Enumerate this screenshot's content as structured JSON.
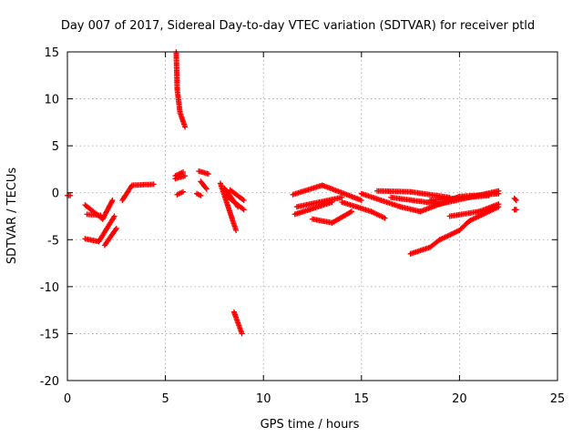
{
  "chart_data": {
    "type": "scatter",
    "title": "Day 007 of 2017, Sidereal Day-to-day VTEC variation (SDTVAR) for receiver ptld",
    "xlabel": "GPS time / hours",
    "ylabel": "SDTVAR / TECUs",
    "xlim": [
      0,
      25
    ],
    "ylim": [
      -20,
      15
    ],
    "xticks": [
      0,
      5,
      10,
      15,
      20,
      25
    ],
    "yticks": [
      -20,
      -15,
      -10,
      -5,
      0,
      5,
      10,
      15
    ],
    "grid": true,
    "marker": "+",
    "color": "#ff0000",
    "series": [
      {
        "segments": [
          {
            "x0": 0.0,
            "y0": -0.3,
            "x1": 0.15,
            "y1": -0.3
          },
          {
            "x0": 0.9,
            "y0": -1.3,
            "x1": 1.8,
            "y1": -2.8
          },
          {
            "x0": 1.0,
            "y0": -2.3,
            "x1": 1.7,
            "y1": -2.4
          },
          {
            "x0": 1.8,
            "y0": -2.8,
            "x1": 2.3,
            "y1": -0.8
          },
          {
            "x0": 0.9,
            "y0": -4.9,
            "x1": 1.6,
            "y1": -5.2
          },
          {
            "x0": 1.6,
            "y0": -5.2,
            "x1": 2.4,
            "y1": -2.5
          },
          {
            "x0": 1.9,
            "y0": -5.6,
            "x1": 2.5,
            "y1": -3.8
          },
          {
            "x0": 2.8,
            "y0": -0.8,
            "x1": 3.3,
            "y1": 0.8
          },
          {
            "x0": 3.3,
            "y0": 0.8,
            "x1": 4.4,
            "y1": 0.9
          },
          {
            "x0": 5.55,
            "y0": 15.0,
            "x1": 5.6,
            "y1": 11.0
          },
          {
            "x0": 5.6,
            "y0": 11.0,
            "x1": 5.75,
            "y1": 8.5
          },
          {
            "x0": 5.75,
            "y0": 8.5,
            "x1": 6.0,
            "y1": 7.0
          },
          {
            "x0": 5.5,
            "y0": 1.8,
            "x1": 5.9,
            "y1": 2.2
          },
          {
            "x0": 5.6,
            "y0": -0.2,
            "x1": 5.9,
            "y1": 0.1
          },
          {
            "x0": 5.5,
            "y0": 1.5,
            "x1": 6.0,
            "y1": 1.8
          },
          {
            "x0": 6.7,
            "y0": 2.3,
            "x1": 7.2,
            "y1": 2.0
          },
          {
            "x0": 6.8,
            "y0": 1.2,
            "x1": 7.1,
            "y1": 0.4
          },
          {
            "x0": 6.6,
            "y0": -0.1,
            "x1": 6.8,
            "y1": -0.3
          },
          {
            "x0": 7.8,
            "y0": 1.0,
            "x1": 8.6,
            "y1": -4.0
          },
          {
            "x0": 8.0,
            "y0": 0.5,
            "x1": 8.7,
            "y1": -1.5
          },
          {
            "x0": 8.1,
            "y0": -0.3,
            "x1": 9.0,
            "y1": -1.8
          },
          {
            "x0": 8.3,
            "y0": 0.3,
            "x1": 9.0,
            "y1": -0.8
          },
          {
            "x0": 8.5,
            "y0": -12.7,
            "x1": 8.9,
            "y1": -15.0
          },
          {
            "x0": 11.5,
            "y0": -0.2,
            "x1": 13.0,
            "y1": 0.8
          },
          {
            "x0": 11.6,
            "y0": -2.3,
            "x1": 13.5,
            "y1": -1.0
          },
          {
            "x0": 11.7,
            "y0": -1.5,
            "x1": 14.0,
            "y1": -0.5
          },
          {
            "x0": 13.0,
            "y0": 0.8,
            "x1": 15.0,
            "y1": -0.8
          },
          {
            "x0": 12.5,
            "y0": -2.8,
            "x1": 13.5,
            "y1": -3.2
          },
          {
            "x0": 13.5,
            "y0": -3.2,
            "x1": 14.5,
            "y1": -2.0
          },
          {
            "x0": 14.0,
            "y0": -1.0,
            "x1": 15.5,
            "y1": -2.0
          },
          {
            "x0": 15.5,
            "y0": -2.0,
            "x1": 16.2,
            "y1": -2.7
          },
          {
            "x0": 15.0,
            "y0": -0.1,
            "x1": 17.0,
            "y1": -1.5
          },
          {
            "x0": 15.8,
            "y0": 0.2,
            "x1": 17.5,
            "y1": 0.1
          },
          {
            "x0": 17.0,
            "y0": -1.5,
            "x1": 18.0,
            "y1": -2.0
          },
          {
            "x0": 16.5,
            "y0": -0.5,
            "x1": 19.0,
            "y1": -1.2
          },
          {
            "x0": 17.5,
            "y0": 0.1,
            "x1": 19.5,
            "y1": -0.5
          },
          {
            "x0": 18.0,
            "y0": -2.0,
            "x1": 20.0,
            "y1": -0.4
          },
          {
            "x0": 19.0,
            "y0": -1.2,
            "x1": 22.0,
            "y1": 0.2
          },
          {
            "x0": 18.5,
            "y0": -0.8,
            "x1": 21.5,
            "y1": -0.3
          },
          {
            "x0": 20.0,
            "y0": -0.4,
            "x1": 22.0,
            "y1": -0.1
          },
          {
            "x0": 19.5,
            "y0": -2.5,
            "x1": 21.0,
            "y1": -2.0
          },
          {
            "x0": 21.0,
            "y0": -2.0,
            "x1": 22.0,
            "y1": -1.2
          },
          {
            "x0": 17.5,
            "y0": -6.5,
            "x1": 18.5,
            "y1": -5.8
          },
          {
            "x0": 18.5,
            "y0": -5.8,
            "x1": 19.0,
            "y1": -5.0
          },
          {
            "x0": 19.0,
            "y0": -5.0,
            "x1": 20.0,
            "y1": -4.0
          },
          {
            "x0": 20.0,
            "y0": -4.0,
            "x1": 20.5,
            "y1": -3.0
          },
          {
            "x0": 20.5,
            "y0": -3.0,
            "x1": 22.0,
            "y1": -1.5
          },
          {
            "x0": 22.8,
            "y0": -0.6,
            "x1": 22.9,
            "y1": -0.8
          },
          {
            "x0": 22.8,
            "y0": -1.8,
            "x1": 22.9,
            "y1": -1.8
          }
        ]
      }
    ]
  }
}
